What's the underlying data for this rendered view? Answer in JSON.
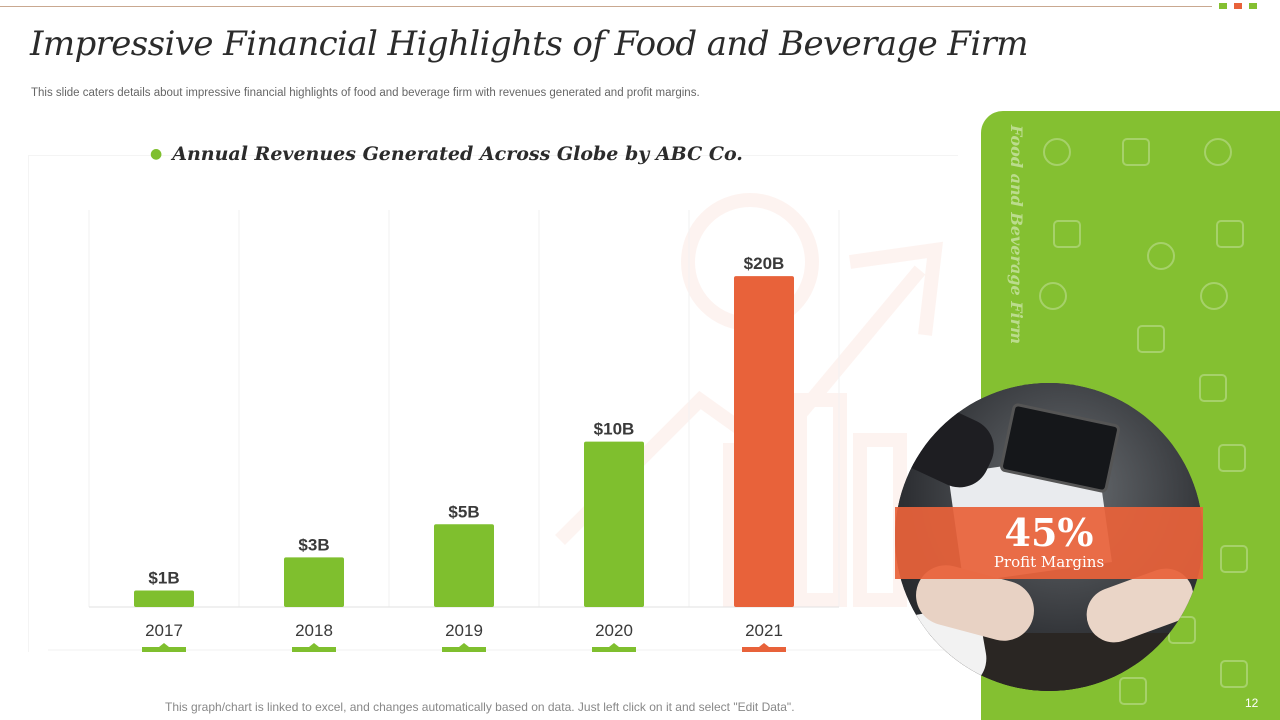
{
  "slide": {
    "title": "Impressive Financial Highlights of Food and Beverage Firm",
    "subtitle": "This slide caters details about impressive  financial highlights of food  and beverage  firm with revenues  generated and profit  margins.",
    "footnote": "This graph/chart is linked to excel, and changes automatically based on data. Just left click on it and select \"Edit Data\".",
    "page_number": "12",
    "panel_label": "Food and Beverage Firm",
    "profit_margin": {
      "value": "45%",
      "label": "Profit Margins"
    },
    "colors": {
      "green": "#84c031",
      "bar_green": "#7fbf2e",
      "orange": "#e8623a",
      "accent_squares": [
        "#84c031",
        "#e8623a",
        "#84c031"
      ]
    }
  },
  "chart_data": {
    "type": "bar",
    "title": "Annual Revenues Generated Across Globe by ABC Co.",
    "categories": [
      "2017",
      "2018",
      "2019",
      "2020",
      "2021"
    ],
    "values": [
      1,
      3,
      5,
      10,
      20
    ],
    "data_labels": [
      "$1B",
      "$3B",
      "$5B",
      "$10B",
      "$20B"
    ],
    "unit": "$B",
    "highlight_index": 4,
    "xlabel": "",
    "ylabel": "",
    "ylim": [
      0,
      24
    ],
    "grid": false
  }
}
